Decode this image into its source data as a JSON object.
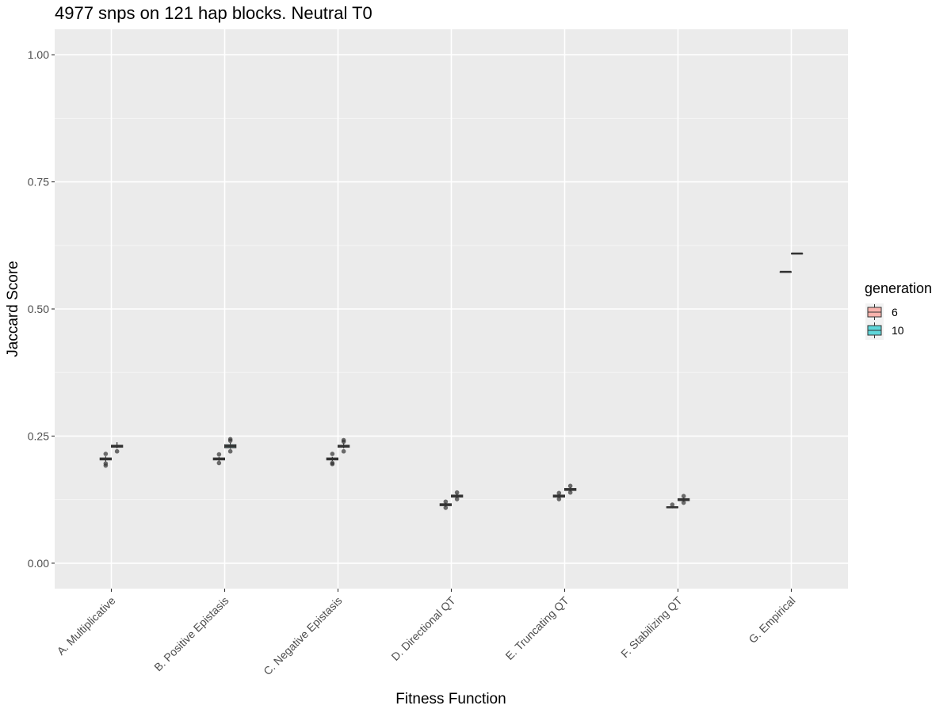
{
  "chart_data": {
    "type": "box",
    "title": "4977 snps on 121 hap blocks. Neutral T0",
    "xlabel": "Fitness Function",
    "ylabel": "Jaccard Score",
    "ylim": [
      -0.05,
      1.05
    ],
    "yticks": [
      0.0,
      0.25,
      0.5,
      0.75,
      1.0
    ],
    "ytick_labels": [
      "0.00",
      "0.25",
      "0.50",
      "0.75",
      "1.00"
    ],
    "grid": true,
    "categories": [
      "A. Multiplicative",
      "B. Positive Epistasis",
      "C. Negative Epistasis",
      "D. Directional QT",
      "E. Truncating QT",
      "F. Stabilizing QT",
      "G. Empirical"
    ],
    "legend": {
      "title": "generation",
      "position": "right",
      "entries": [
        {
          "label": "6",
          "color": "#f8b3ad"
        },
        {
          "label": "10",
          "color": "#5fd6d9"
        }
      ]
    },
    "series": [
      {
        "name": "6",
        "color": "#f8766d",
        "boxes": [
          {
            "median": 0.205,
            "q1": 0.203,
            "q3": 0.207,
            "whisker_low": 0.2,
            "whisker_high": 0.21,
            "outliers": [
              0.215,
              0.196,
              0.192
            ]
          },
          {
            "median": 0.205,
            "q1": 0.203,
            "q3": 0.207,
            "whisker_low": 0.201,
            "whisker_high": 0.209,
            "outliers": [
              0.214,
              0.197
            ]
          },
          {
            "median": 0.205,
            "q1": 0.203,
            "q3": 0.207,
            "whisker_low": 0.201,
            "whisker_high": 0.209,
            "outliers": [
              0.215,
              0.197,
              0.195
            ]
          },
          {
            "median": 0.115,
            "q1": 0.113,
            "q3": 0.117,
            "whisker_low": 0.111,
            "whisker_high": 0.119,
            "outliers": [
              0.121,
              0.109
            ]
          },
          {
            "median": 0.132,
            "q1": 0.13,
            "q3": 0.134,
            "whisker_low": 0.128,
            "whisker_high": 0.136,
            "outliers": [
              0.138,
              0.126
            ]
          },
          {
            "median": 0.11,
            "q1": 0.109,
            "q3": 0.111,
            "whisker_low": 0.108,
            "whisker_high": 0.112,
            "outliers": [
              0.115
            ]
          },
          {
            "median": 0.573,
            "q1": 0.573,
            "q3": 0.573,
            "whisker_low": 0.573,
            "whisker_high": 0.573,
            "outliers": []
          }
        ]
      },
      {
        "name": "10",
        "color": "#00bfc4",
        "boxes": [
          {
            "median": 0.23,
            "q1": 0.228,
            "q3": 0.232,
            "whisker_low": 0.226,
            "whisker_high": 0.238,
            "outliers": [
              0.22
            ]
          },
          {
            "median": 0.23,
            "q1": 0.227,
            "q3": 0.233,
            "whisker_low": 0.225,
            "whisker_high": 0.237,
            "outliers": [
              0.244,
              0.241,
              0.22
            ]
          },
          {
            "median": 0.23,
            "q1": 0.228,
            "q3": 0.232,
            "whisker_low": 0.226,
            "whisker_high": 0.236,
            "outliers": [
              0.242,
              0.239,
              0.22
            ]
          },
          {
            "median": 0.132,
            "q1": 0.13,
            "q3": 0.134,
            "whisker_low": 0.128,
            "whisker_high": 0.137,
            "outliers": [
              0.139,
              0.126
            ]
          },
          {
            "median": 0.145,
            "q1": 0.143,
            "q3": 0.147,
            "whisker_low": 0.141,
            "whisker_high": 0.149,
            "outliers": [
              0.152,
              0.139
            ]
          },
          {
            "median": 0.125,
            "q1": 0.123,
            "q3": 0.127,
            "whisker_low": 0.121,
            "whisker_high": 0.129,
            "outliers": [
              0.132,
              0.119
            ]
          },
          {
            "median": 0.609,
            "q1": 0.609,
            "q3": 0.609,
            "whisker_low": 0.609,
            "whisker_high": 0.609,
            "outliers": []
          }
        ]
      }
    ]
  }
}
